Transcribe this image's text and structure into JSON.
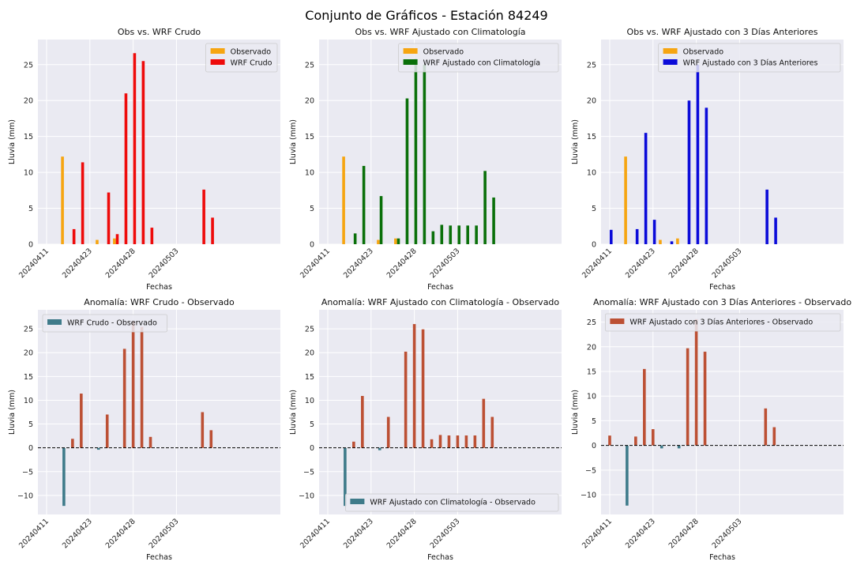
{
  "suptitle": "Conjunto de Gráficos - Estación 84249",
  "colors": {
    "observed": "#f6a511",
    "wrf_crudo": "#ee0b0b",
    "wrf_clima": "#0a700a",
    "wrf_3d": "#0b0bd9",
    "anom_pos": "#bc5034",
    "anom_neg": "#3f7b8a",
    "plot_bg": "#eaeaf2",
    "grid": "#ffffff"
  },
  "chart_data": [
    {
      "type": "bar",
      "title": "Obs vs. WRF Crudo",
      "xlabel": "Fechas",
      "ylabel": "Lluvia (mm)",
      "ylim": [
        0,
        28.5
      ],
      "yticks": [
        0,
        5,
        10,
        15,
        20,
        25
      ],
      "xlim": [
        0,
        28
      ],
      "xticks": [
        {
          "pos": 1,
          "label": "20240411"
        },
        {
          "pos": 6,
          "label": "20240423"
        },
        {
          "pos": 11,
          "label": "20240428"
        },
        {
          "pos": 16,
          "label": "20240503"
        }
      ],
      "legend_loc": "top-right",
      "series": [
        {
          "name": "Observado",
          "color_key": "observed",
          "pts": [
            [
              3,
              12.2
            ],
            [
              7,
              0.6
            ],
            [
              9,
              0.8
            ]
          ]
        },
        {
          "name": "WRF Crudo",
          "color_key": "wrf_crudo",
          "pts": [
            [
              4,
              2.1
            ],
            [
              5,
              11.4
            ],
            [
              8,
              7.2
            ],
            [
              9,
              1.4
            ],
            [
              10,
              21.0
            ],
            [
              11,
              26.6
            ],
            [
              12,
              25.5
            ],
            [
              13,
              2.3
            ],
            [
              19,
              7.6
            ],
            [
              20,
              3.7
            ]
          ]
        }
      ]
    },
    {
      "type": "bar",
      "title": "Obs vs. WRF Ajustado con Climatología",
      "xlabel": "Fechas",
      "ylabel": "Lluvia (mm)",
      "ylim": [
        0,
        28.5
      ],
      "yticks": [
        0,
        5,
        10,
        15,
        20,
        25
      ],
      "xlim": [
        0,
        28
      ],
      "xticks": [
        {
          "pos": 1,
          "label": "20240411"
        },
        {
          "pos": 6,
          "label": "20240423"
        },
        {
          "pos": 11,
          "label": "20240428"
        },
        {
          "pos": 16,
          "label": "20240503"
        }
      ],
      "legend_loc": "top-right",
      "series": [
        {
          "name": "Observado",
          "color_key": "observed",
          "pts": [
            [
              3,
              12.2
            ],
            [
              7,
              0.6
            ],
            [
              9,
              0.8
            ]
          ]
        },
        {
          "name": "WRF Ajustado con Climatología",
          "color_key": "wrf_clima",
          "pts": [
            [
              4,
              1.5
            ],
            [
              5,
              10.9
            ],
            [
              7,
              6.7
            ],
            [
              9,
              0.8
            ],
            [
              10,
              20.3
            ],
            [
              11,
              25.8
            ],
            [
              12,
              25.0
            ],
            [
              13,
              1.8
            ],
            [
              14,
              2.7
            ],
            [
              15,
              2.6
            ],
            [
              16,
              2.6
            ],
            [
              17,
              2.6
            ],
            [
              18,
              2.6
            ],
            [
              19,
              10.2
            ],
            [
              20,
              6.5
            ]
          ]
        }
      ]
    },
    {
      "type": "bar",
      "title": "Obs vs. WRF Ajustado con 3 Días Anteriores",
      "xlabel": "Fechas",
      "ylabel": "Lluvia (mm)",
      "ylim": [
        0,
        28.5
      ],
      "yticks": [
        0,
        5,
        10,
        15,
        20,
        25
      ],
      "xlim": [
        0,
        28
      ],
      "xticks": [
        {
          "pos": 1,
          "label": "20240411"
        },
        {
          "pos": 6,
          "label": "20240423"
        },
        {
          "pos": 11,
          "label": "20240428"
        },
        {
          "pos": 16,
          "label": "20240503"
        }
      ],
      "legend_loc": "top-right",
      "series": [
        {
          "name": "Observado",
          "color_key": "observed",
          "pts": [
            [
              3,
              12.2
            ],
            [
              7,
              0.6
            ],
            [
              9,
              0.8
            ]
          ]
        },
        {
          "name": "WRF Ajustado con 3 Días Anteriores",
          "color_key": "wrf_3d",
          "pts": [
            [
              1,
              2.0
            ],
            [
              4,
              2.1
            ],
            [
              5,
              15.5
            ],
            [
              6,
              3.4
            ],
            [
              8,
              0.4
            ],
            [
              10,
              20.0
            ],
            [
              11,
              25.0
            ],
            [
              12,
              19.0
            ],
            [
              19,
              7.6
            ],
            [
              20,
              3.7
            ]
          ]
        }
      ]
    },
    {
      "type": "bar",
      "title": "Anomalía: WRF Crudo - Observado",
      "xlabel": "Fechas",
      "ylabel": "Lluvia (mm)",
      "ylim": [
        -14,
        29
      ],
      "yticks": [
        -10,
        -5,
        0,
        5,
        10,
        15,
        20,
        25
      ],
      "xlim": [
        0,
        28
      ],
      "xticks": [
        {
          "pos": 1,
          "label": "20240411"
        },
        {
          "pos": 6,
          "label": "20240423"
        },
        {
          "pos": 11,
          "label": "20240428"
        },
        {
          "pos": 16,
          "label": "20240503"
        }
      ],
      "legend_loc": "top-left",
      "zero_line": true,
      "anomaly_series": {
        "name": "WRF Crudo - Observado",
        "values": [
          [
            3,
            -12.2
          ],
          [
            4,
            1.9
          ],
          [
            5,
            11.4
          ],
          [
            7,
            -0.4
          ],
          [
            8,
            7.0
          ],
          [
            10,
            20.8
          ],
          [
            11,
            26.6
          ],
          [
            12,
            25.4
          ],
          [
            13,
            2.3
          ],
          [
            19,
            7.5
          ],
          [
            20,
            3.7
          ]
        ]
      }
    },
    {
      "type": "bar",
      "title": "Anomalía: WRF Ajustado con Climatología - Observado",
      "xlabel": "Fechas",
      "ylabel": "Lluvia (mm)",
      "ylim": [
        -14,
        29
      ],
      "yticks": [
        -10,
        -5,
        0,
        5,
        10,
        15,
        20,
        25
      ],
      "xlim": [
        0,
        28
      ],
      "xticks": [
        {
          "pos": 1,
          "label": "20240411"
        },
        {
          "pos": 6,
          "label": "20240423"
        },
        {
          "pos": 11,
          "label": "20240428"
        },
        {
          "pos": 16,
          "label": "20240503"
        }
      ],
      "legend_loc": "bottom-right",
      "zero_line": true,
      "anomaly_series": {
        "name": "WRF Ajustado con Climatología - Observado",
        "values": [
          [
            3,
            -12.2
          ],
          [
            4,
            1.3
          ],
          [
            5,
            10.9
          ],
          [
            7,
            -0.5
          ],
          [
            8,
            6.5
          ],
          [
            10,
            20.2
          ],
          [
            11,
            26.0
          ],
          [
            12,
            24.9
          ],
          [
            13,
            1.8
          ],
          [
            14,
            2.7
          ],
          [
            15,
            2.6
          ],
          [
            16,
            2.6
          ],
          [
            17,
            2.6
          ],
          [
            18,
            2.6
          ],
          [
            19,
            10.3
          ],
          [
            20,
            6.5
          ]
        ]
      }
    },
    {
      "type": "bar",
      "title": "Anomalía: WRF Ajustado con 3 Días Anteriores - Observado",
      "xlabel": "Fechas",
      "ylabel": "Lluvia (mm)",
      "ylim": [
        -14,
        27.5
      ],
      "yticks": [
        -10,
        -5,
        0,
        5,
        10,
        15,
        20,
        25
      ],
      "xlim": [
        0,
        28
      ],
      "xticks": [
        {
          "pos": 1,
          "label": "20240411"
        },
        {
          "pos": 6,
          "label": "20240423"
        },
        {
          "pos": 11,
          "label": "20240428"
        },
        {
          "pos": 16,
          "label": "20240503"
        }
      ],
      "legend_loc": "top-right",
      "zero_line": true,
      "anomaly_series": {
        "name": "WRF Ajustado con 3 Días Anteriores - Observado",
        "values": [
          [
            1,
            2.0
          ],
          [
            3,
            -12.2
          ],
          [
            4,
            1.8
          ],
          [
            5,
            15.5
          ],
          [
            6,
            3.3
          ],
          [
            7,
            -0.6
          ],
          [
            9,
            -0.6
          ],
          [
            10,
            19.7
          ],
          [
            11,
            25.6
          ],
          [
            12,
            19.0
          ],
          [
            19,
            7.5
          ],
          [
            20,
            3.7
          ]
        ]
      }
    }
  ]
}
